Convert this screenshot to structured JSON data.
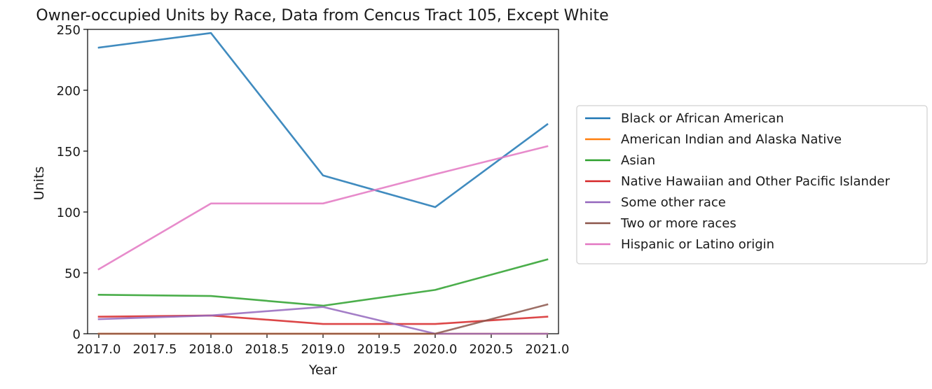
{
  "chart_data": {
    "type": "line",
    "title": "Owner-occupied Units by Race, Data from Cencus Tract 105, Except White",
    "xlabel": "Year",
    "ylabel": "Units",
    "xlim": [
      2016.9,
      2021.1
    ],
    "ylim": [
      0,
      250
    ],
    "xticks": [
      "2017.0",
      "2017.5",
      "2018.0",
      "2018.5",
      "2019.0",
      "2019.5",
      "2020.0",
      "2020.5",
      "2021.0"
    ],
    "yticks": [
      "0",
      "50",
      "100",
      "150",
      "200",
      "250"
    ],
    "grid": false,
    "legend_position": "right",
    "x": [
      2017,
      2018,
      2019,
      2020,
      2021
    ],
    "series": [
      {
        "name": "Black or African American",
        "color": "#1f77b4",
        "values": [
          235,
          247,
          130,
          104,
          172
        ]
      },
      {
        "name": "American Indian and Alaska Native",
        "color": "#ff7f0e",
        "values": [
          0,
          0,
          0,
          0,
          0
        ]
      },
      {
        "name": "Asian",
        "color": "#2ca02c",
        "values": [
          32,
          31,
          23,
          36,
          61
        ]
      },
      {
        "name": "Native Hawaiian and Other Pacific Islander",
        "color": "#d62728",
        "values": [
          14,
          15,
          8,
          8,
          14
        ]
      },
      {
        "name": "Some other race",
        "color": "#9467bd",
        "values": [
          12,
          15,
          22,
          0,
          0
        ]
      },
      {
        "name": "Two or more races",
        "color": "#8c564b",
        "values": [
          0,
          0,
          0,
          0,
          24
        ]
      },
      {
        "name": "Hispanic or Latino origin",
        "color": "#e377c2",
        "values": [
          53,
          107,
          107,
          131,
          154
        ]
      }
    ]
  }
}
